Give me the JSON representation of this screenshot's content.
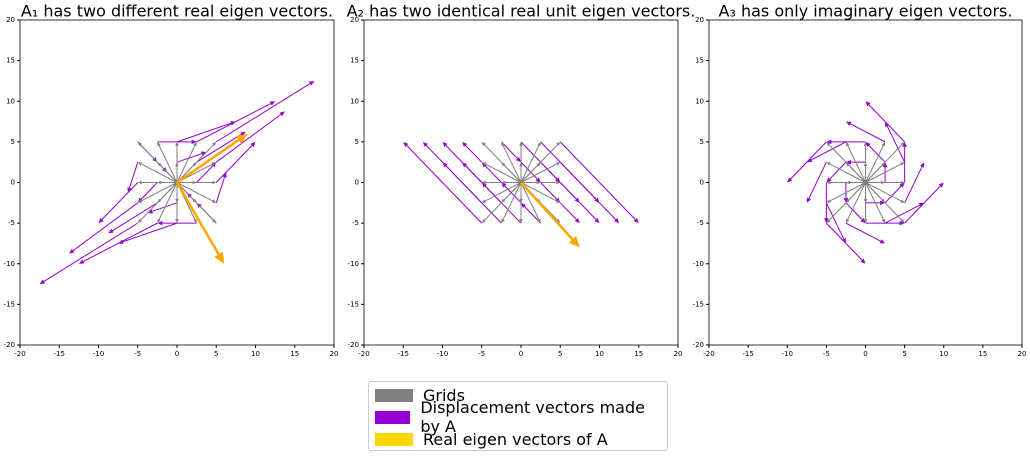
{
  "chart_data": [
    {
      "type": "quiver",
      "title": "A₁ has two different real eigen vectors.",
      "x": [
        -5,
        -5,
        -5,
        -5,
        -5,
        -2.5,
        -2.5,
        -2.5,
        -2.5,
        -2.5,
        0,
        0,
        0,
        0,
        2.5,
        2.5,
        2.5,
        2.5,
        2.5,
        5,
        5,
        5,
        5,
        5
      ],
      "y": [
        -5,
        -2.5,
        0,
        2.5,
        5,
        -5,
        -2.5,
        0,
        2.5,
        5,
        -5,
        -2.5,
        2.5,
        5,
        -5,
        -2.5,
        0,
        2.5,
        5,
        -5,
        -2.5,
        0,
        2.5,
        5
      ],
      "u": [
        -17.5,
        -13.75,
        -10,
        -6.25,
        -2.5,
        -12.5,
        -8.75,
        -5,
        -1.25,
        2.5,
        -7.5,
        -3.75,
        3.75,
        7.5,
        -2.5,
        1.25,
        5,
        8.75,
        12.5,
        2.5,
        6.25,
        10,
        13.75,
        17.5
      ],
      "v": [
        -12.5,
        -8.75,
        -5,
        -1.25,
        2.5,
        -10,
        -6.25,
        -2.5,
        1.25,
        5,
        -7.5,
        -3.75,
        3.75,
        7.5,
        -5,
        -1.25,
        2.5,
        6.25,
        10,
        -2.5,
        1.25,
        5,
        8.75,
        12.5
      ],
      "eig_u": [
        9,
        6
      ],
      "eig_v": [
        6,
        -10
      ],
      "grid_color": "#808080",
      "vector_color": "#9400d3",
      "eigen_color": "#ffa500",
      "xlim": [
        -20,
        20
      ],
      "ylim": [
        -20,
        20
      ],
      "xticks": [
        -20,
        -15,
        -10,
        -5,
        0,
        5,
        10,
        15,
        20
      ],
      "yticks": [
        -20,
        -15,
        -10,
        -5,
        0,
        5,
        10,
        15,
        20
      ]
    },
    {
      "type": "quiver",
      "title": "A₂ has two identical real unit eigen vectors.",
      "x": [
        -5,
        -5,
        -5,
        -5,
        -5,
        -2.5,
        -2.5,
        -2.5,
        -2.5,
        -2.5,
        0,
        0,
        0,
        0,
        2.5,
        2.5,
        2.5,
        2.5,
        2.5,
        5,
        5,
        5,
        5,
        5
      ],
      "y": [
        -5,
        -2.5,
        0,
        2.5,
        5,
        -5,
        -2.5,
        0,
        2.5,
        5,
        -5,
        -2.5,
        2.5,
        5,
        -5,
        -2.5,
        0,
        2.5,
        5,
        -5,
        -2.5,
        0,
        2.5,
        5
      ],
      "u": [
        -15,
        -12.5,
        -10,
        -7.5,
        -5,
        -10,
        -7.5,
        -5,
        -2.5,
        0,
        -5,
        -2.5,
        2.5,
        5,
        0,
        2.5,
        5,
        7.5,
        10,
        5,
        7.5,
        10,
        12.5,
        15
      ],
      "v": [
        5,
        5,
        5,
        5,
        5,
        2.5,
        2.5,
        2.5,
        2.5,
        2.5,
        0,
        0,
        0,
        0,
        -2.5,
        -2.5,
        -2.5,
        -2.5,
        -2.5,
        -5,
        -5,
        -5,
        -5,
        -5
      ],
      "eig_u": [
        7.5
      ],
      "eig_v": [
        -8
      ],
      "grid_color": "#808080",
      "vector_color": "#9400d3",
      "eigen_color": "#ffa500",
      "xlim": [
        -20,
        20
      ],
      "ylim": [
        -20,
        20
      ],
      "xticks": [
        -20,
        -15,
        -10,
        -5,
        0,
        5,
        10,
        15,
        20
      ],
      "yticks": [
        -20,
        -15,
        -10,
        -5,
        0,
        5,
        10,
        15,
        20
      ]
    },
    {
      "type": "quiver",
      "title": "A₃ has only imaginary eigen vectors.",
      "x": [
        -5,
        -5,
        -5,
        -5,
        -5,
        -2.5,
        -2.5,
        -2.5,
        -2.5,
        -2.5,
        0,
        0,
        0,
        0,
        2.5,
        2.5,
        2.5,
        2.5,
        2.5,
        5,
        5,
        5,
        5,
        5
      ],
      "y": [
        -5,
        -2.5,
        0,
        2.5,
        5,
        -5,
        -2.5,
        0,
        2.5,
        5,
        -5,
        -2.5,
        2.5,
        5,
        -5,
        -2.5,
        0,
        2.5,
        5,
        -5,
        -2.5,
        0,
        2.5,
        5
      ],
      "u": [
        0,
        -2.5,
        -5,
        -7.5,
        -10,
        2.5,
        0,
        -2.5,
        -5,
        -7.5,
        5,
        2.5,
        -2.5,
        -5,
        7.5,
        5,
        2.5,
        0,
        -2.5,
        10,
        7.5,
        5,
        2.5,
        0
      ],
      "v": [
        -10,
        -7.5,
        -5,
        -2.5,
        0,
        -7.5,
        -5,
        -2.5,
        0,
        2.5,
        -5,
        -2.5,
        2.5,
        5,
        -2.5,
        0,
        2.5,
        5,
        7.5,
        0,
        2.5,
        5,
        7.5,
        10
      ],
      "eig_u": [],
      "eig_v": [],
      "grid_color": "#808080",
      "vector_color": "#9400d3",
      "eigen_color": "#ffa500",
      "xlim": [
        -20,
        20
      ],
      "ylim": [
        -20,
        20
      ],
      "xticks": [
        -20,
        -15,
        -10,
        -5,
        0,
        5,
        10,
        15,
        20
      ],
      "yticks": [
        -20,
        -15,
        -10,
        -5,
        0,
        5,
        10,
        15,
        20
      ]
    }
  ],
  "legend": {
    "items": [
      {
        "label": "Grids",
        "color": "#808080"
      },
      {
        "label": "Displacement vectors made by A",
        "color": "#9400d3"
      },
      {
        "label": "Real eigen vectors of A",
        "color": "#ffd700"
      }
    ]
  }
}
